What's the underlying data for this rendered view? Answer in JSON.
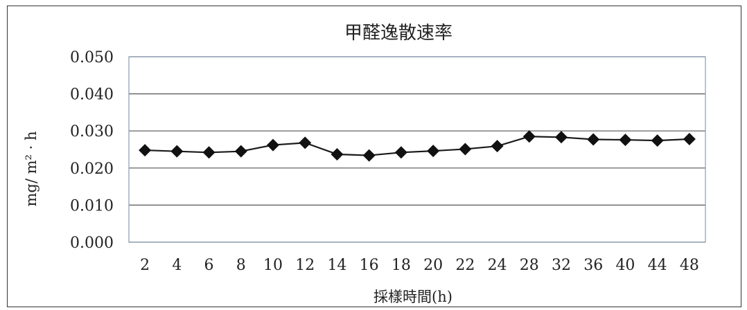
{
  "chart_data": {
    "type": "line",
    "title": "甲醛逸散速率",
    "xlabel": "採樣時間(h)",
    "ylabel": "mg/ m² · h",
    "categories": [
      "2",
      "4",
      "6",
      "8",
      "10",
      "12",
      "14",
      "16",
      "18",
      "20",
      "22",
      "24",
      "28",
      "32",
      "36",
      "40",
      "44",
      "48"
    ],
    "series": [
      {
        "values": [
          0.0248,
          0.0245,
          0.0242,
          0.0245,
          0.0262,
          0.0268,
          0.0237,
          0.0234,
          0.0242,
          0.0246,
          0.0251,
          0.0259,
          0.0285,
          0.0283,
          0.0277,
          0.0276,
          0.0274,
          0.0278
        ]
      }
    ],
    "ylim": [
      0,
      0.05
    ],
    "yticks": [
      "0.000",
      "0.010",
      "0.020",
      "0.030",
      "0.040",
      "0.050"
    ],
    "ytick_values": [
      0,
      0.01,
      0.02,
      0.03,
      0.04,
      0.05
    ],
    "grid": true,
    "legend": "none",
    "colors": {
      "line": "#1a1a1a",
      "marker": "#111111",
      "grid": "#555555"
    },
    "marker": "diamond"
  }
}
